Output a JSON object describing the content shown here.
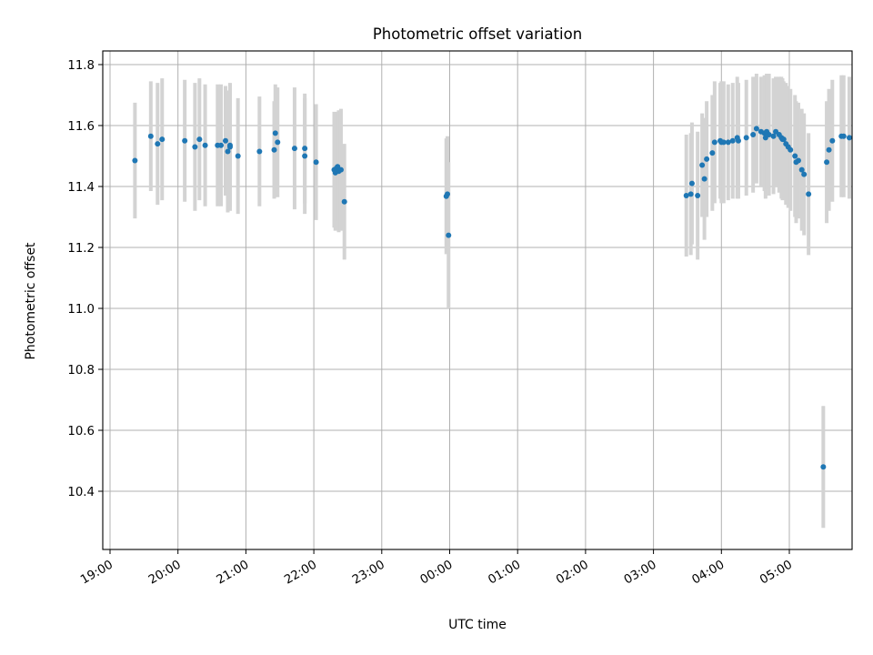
{
  "chart_data": {
    "type": "scatter",
    "title": "Photometric offset variation",
    "xlabel": "UTC time",
    "ylabel": "Photometric offset",
    "x_unit": "time of day (UTC, spanning midnight)",
    "xlim": [
      "19:00",
      "05:55"
    ],
    "ylim": [
      10.22,
      11.85
    ],
    "x_ticks": [
      "19:00",
      "20:00",
      "21:00",
      "22:00",
      "23:00",
      "00:00",
      "01:00",
      "02:00",
      "03:00",
      "04:00",
      "05:00"
    ],
    "y_ticks": [
      10.4,
      10.6,
      10.8,
      11.0,
      11.2,
      11.4,
      11.6,
      11.8
    ],
    "grid": true,
    "legend": "none",
    "colors": {
      "points": "#1f77b4",
      "errorbars": "#d3d3d3",
      "grid": "#b0b0b0"
    },
    "series": [
      {
        "x": [
          "19:22",
          "19:36",
          "19:42",
          "19:46",
          "20:06",
          "20:15",
          "20:19",
          "20:24",
          "20:35",
          "20:38",
          "20:42",
          "20:44",
          "20:46",
          "20:46",
          "20:53",
          "21:12",
          "21:25",
          "21:26",
          "21:28",
          "21:43",
          "21:52",
          "21:52",
          "22:02",
          "22:18",
          "22:19",
          "22:20",
          "22:21",
          "22:22",
          "22:24",
          "22:27",
          "23:57",
          "23:58",
          "23:59",
          "03:29",
          "03:33",
          "03:34",
          "03:39",
          "03:43",
          "03:45",
          "03:47",
          "03:52",
          "03:54",
          "03:59",
          "04:00",
          "04:02",
          "04:06",
          "04:10",
          "04:14",
          "04:15",
          "04:22",
          "04:28",
          "04:31",
          "04:35",
          "04:38",
          "04:39",
          "04:40",
          "04:42",
          "04:46",
          "04:48",
          "04:51",
          "04:53",
          "04:54",
          "04:55",
          "04:57",
          "04:59",
          "05:01",
          "05:05",
          "05:06",
          "05:08",
          "05:11",
          "05:13",
          "05:17",
          "05:30",
          "05:33",
          "05:35",
          "05:38",
          "05:46",
          "05:48",
          "05:53"
        ],
        "y": [
          11.485,
          11.565,
          11.54,
          11.555,
          11.55,
          11.53,
          11.555,
          11.535,
          11.535,
          11.535,
          11.55,
          11.515,
          11.535,
          11.53,
          11.5,
          11.515,
          11.52,
          11.575,
          11.545,
          11.525,
          11.5,
          11.525,
          11.48,
          11.455,
          11.445,
          11.46,
          11.465,
          11.45,
          11.455,
          11.35,
          11.368,
          11.375,
          11.24,
          11.37,
          11.375,
          11.41,
          11.37,
          11.47,
          11.425,
          11.49,
          11.51,
          11.545,
          11.55,
          11.545,
          11.545,
          11.545,
          11.55,
          11.56,
          11.55,
          11.56,
          11.57,
          11.59,
          11.58,
          11.575,
          11.56,
          11.58,
          11.57,
          11.565,
          11.58,
          11.57,
          11.56,
          11.555,
          11.555,
          11.54,
          11.53,
          11.52,
          11.5,
          11.48,
          11.485,
          11.455,
          11.44,
          11.375,
          10.48,
          11.48,
          11.52,
          11.55,
          11.565,
          11.565,
          11.56
        ],
        "yerr": [
          0.19,
          0.18,
          0.2,
          0.2,
          0.2,
          0.21,
          0.2,
          0.2,
          0.2,
          0.2,
          0.18,
          0.2,
          0.2,
          0.21,
          0.19,
          0.18,
          0.16,
          0.16,
          0.18,
          0.2,
          0.19,
          0.18,
          0.19,
          0.19,
          0.19,
          0.17,
          0.18,
          0.2,
          0.2,
          0.19,
          0.19,
          0.19,
          0.24,
          0.2,
          0.2,
          0.2,
          0.21,
          0.17,
          0.2,
          0.19,
          0.19,
          0.2,
          0.19,
          0.2,
          0.2,
          0.19,
          0.19,
          0.2,
          0.19,
          0.19,
          0.19,
          0.18,
          0.18,
          0.19,
          0.2,
          0.19,
          0.2,
          0.19,
          0.18,
          0.19,
          0.2,
          0.2,
          0.19,
          0.2,
          0.2,
          0.2,
          0.2,
          0.2,
          0.19,
          0.2,
          0.2,
          0.2,
          0.2,
          0.2,
          0.2,
          0.2,
          0.2,
          0.2,
          0.2
        ]
      }
    ]
  }
}
